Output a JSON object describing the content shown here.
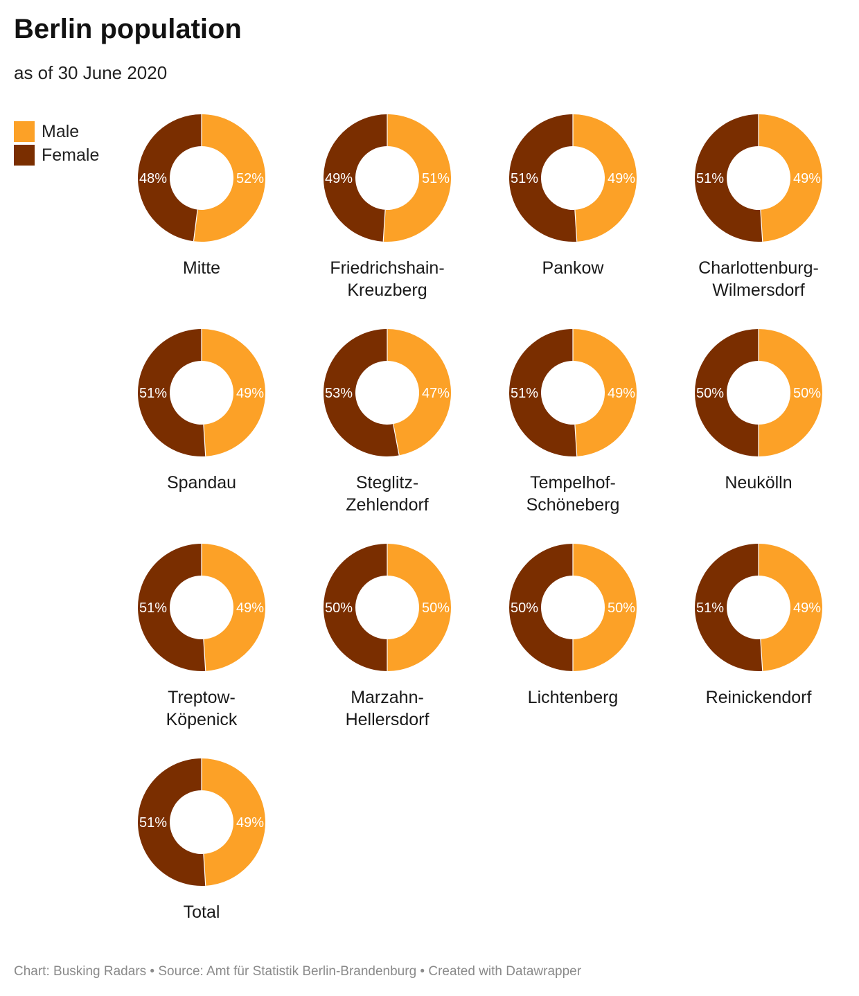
{
  "title": "Berlin population",
  "subtitle": "as of 30 June 2020",
  "footer": "Chart: Busking Radars • Source: Amt für Statistik Berlin-Brandenburg • Created with Datawrapper",
  "legend": [
    {
      "label": "Male",
      "color": "#fca127"
    },
    {
      "label": "Female",
      "color": "#7a2e00"
    }
  ],
  "chart_data": {
    "type": "pie",
    "title": "Berlin population",
    "subtitle": "as of 30 June 2020",
    "series_names": [
      "Male",
      "Female"
    ],
    "colors": {
      "male": "#fca127",
      "female": "#7a2e00"
    },
    "donuts": [
      {
        "name": [
          "Mitte"
        ],
        "male": 52,
        "female": 48
      },
      {
        "name": [
          "Friedrichshain-",
          "Kreuzberg"
        ],
        "male": 51,
        "female": 49
      },
      {
        "name": [
          "Pankow"
        ],
        "male": 49,
        "female": 51
      },
      {
        "name": [
          "Charlottenburg-",
          "Wilmersdorf"
        ],
        "male": 49,
        "female": 51
      },
      {
        "name": [
          "Spandau"
        ],
        "male": 49,
        "female": 51
      },
      {
        "name": [
          "Steglitz-",
          "Zehlendorf"
        ],
        "male": 47,
        "female": 53
      },
      {
        "name": [
          "Tempelhof-",
          "Schöneberg"
        ],
        "male": 49,
        "female": 51
      },
      {
        "name": [
          "Neukölln"
        ],
        "male": 50,
        "female": 50
      },
      {
        "name": [
          "Treptow-",
          "Köpenick"
        ],
        "male": 49,
        "female": 51
      },
      {
        "name": [
          "Marzahn-",
          "Hellersdorf"
        ],
        "male": 50,
        "female": 50
      },
      {
        "name": [
          "Lichtenberg"
        ],
        "male": 50,
        "female": 50
      },
      {
        "name": [
          "Reinickendorf"
        ],
        "male": 49,
        "female": 51
      },
      {
        "name": [
          "Total"
        ],
        "male": 49,
        "female": 51
      }
    ]
  }
}
